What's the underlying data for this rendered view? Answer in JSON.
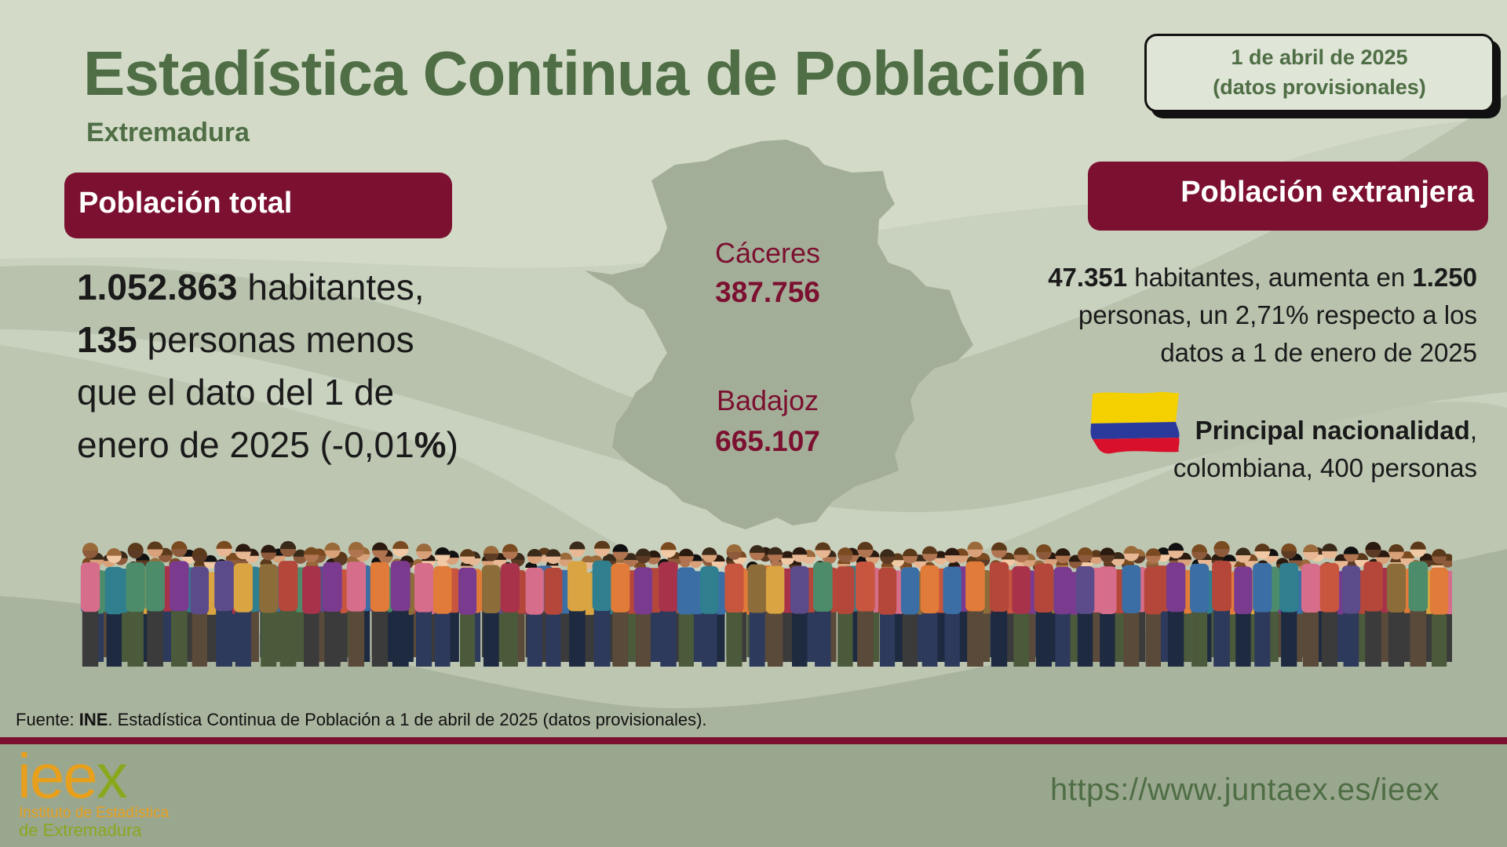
{
  "header": {
    "title": "Estadística Continua de Población",
    "subtitle": "Extremadura",
    "date_line1": "1 de abril de 2025",
    "date_line2": "(datos provisionales)"
  },
  "total": {
    "label": "Población total",
    "value": "1.052.863",
    "text_after_value": " habitantes,",
    "change": "135",
    "text_after_change": " personas menos",
    "line3": "que el dato del 1 de",
    "line4_a": "enero de 2025 (-0,01",
    "line4_pct": "%",
    "line4_b": ")"
  },
  "map": {
    "caceres_label": "Cáceres",
    "caceres_value": "387.756",
    "badajoz_label": "Badajoz",
    "badajoz_value": "665.107"
  },
  "foreign": {
    "label": "Población extranjera",
    "value": "47.351",
    "text1": " habitantes, aumenta en ",
    "increase": "1.250",
    "line2": "personas, un 2,71% respecto a los",
    "line3": "datos a 1 de enero de 2025",
    "nationality_label": "Principal nacionalidad",
    "nationality_comma": ",",
    "nationality_value": "colombiana, 400 personas",
    "flag_icon": "colombia-flag-icon"
  },
  "footer": {
    "source_prefix": "Fuente: ",
    "source_bold": "INE",
    "source_rest": ". Estadística  Continua de Población a 1 de abril de 2025 (datos provisionales).",
    "url": "https://www.juntaex.es/ieex",
    "logo_e1": "ie",
    "logo_e2": "e",
    "logo_x": "x",
    "logo_line1": "Instituto de Estadística",
    "logo_line2": "de Extremadura"
  },
  "colors": {
    "accent": "#7b1030",
    "title_green": "#4f6e45",
    "background": "#c9d1bf",
    "footer_bg": "#9aa78f"
  }
}
